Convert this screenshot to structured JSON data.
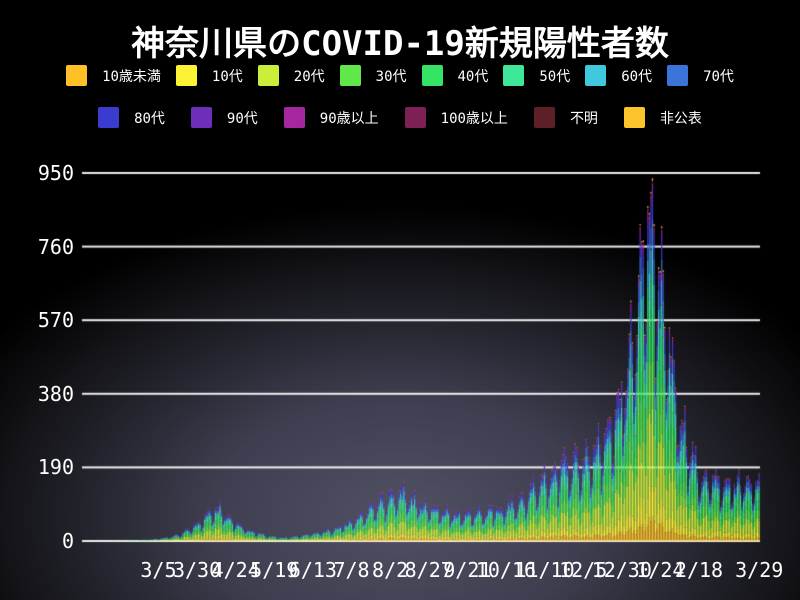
{
  "title": "神奈川県のCOVID-19新規陽性者数",
  "colors": {
    "background_glow": "#515164",
    "background_edge": "#000000",
    "grid": "#ffffff",
    "text": "#ffffff"
  },
  "chart_data": {
    "type": "bar",
    "stacked": true,
    "title": "神奈川県のCOVID-19新規陽性者数",
    "xlabel": "",
    "ylabel": "",
    "grid": true,
    "legend_position": "top",
    "y_ticks": [
      0,
      190,
      380,
      570,
      760,
      950
    ],
    "ylim": [
      0,
      1020
    ],
    "n_days": 439,
    "x_ticks": [
      {
        "label": "3/5",
        "day": 49
      },
      {
        "label": "3/30",
        "day": 74
      },
      {
        "label": "4/24",
        "day": 99
      },
      {
        "label": "5/19",
        "day": 124
      },
      {
        "label": "6/13",
        "day": 149
      },
      {
        "label": "7/8",
        "day": 174
      },
      {
        "label": "8/2",
        "day": 199
      },
      {
        "label": "8/27",
        "day": 224
      },
      {
        "label": "9/21",
        "day": 249
      },
      {
        "label": "10/16",
        "day": 274
      },
      {
        "label": "11/10",
        "day": 299
      },
      {
        "label": "12/5",
        "day": 324
      },
      {
        "label": "12/30",
        "day": 349
      },
      {
        "label": "1/24",
        "day": 374
      },
      {
        "label": "2/18",
        "day": 399
      },
      {
        "label": "3/29",
        "day": 438
      }
    ],
    "series": [
      {
        "label": "10歳未満",
        "color": "#ffc127",
        "share": 0.055
      },
      {
        "label": "10代",
        "color": "#fdf335",
        "share": 0.08
      },
      {
        "label": "20代",
        "color": "#c9ef3a",
        "share": 0.2
      },
      {
        "label": "30代",
        "color": "#60e84a",
        "share": 0.15
      },
      {
        "label": "40代",
        "color": "#34e363",
        "share": 0.14
      },
      {
        "label": "50代",
        "color": "#3de898",
        "share": 0.12
      },
      {
        "label": "60代",
        "color": "#3fc8de",
        "share": 0.08
      },
      {
        "label": "70代",
        "color": "#3b74d8",
        "share": 0.07
      },
      {
        "label": "80代",
        "color": "#3b3bd0",
        "share": 0.055
      },
      {
        "label": "90代",
        "color": "#6d2fba",
        "share": 0.028
      },
      {
        "label": "90歳以上",
        "color": "#a527a0",
        "share": 0.01
      },
      {
        "label": "100歳以上",
        "color": "#7c2055",
        "share": 0.003
      },
      {
        "label": "不明",
        "color": "#5c2026",
        "share": 0.004
      },
      {
        "label": "非公表",
        "color": "#fcc32b",
        "share": 0.005
      }
    ],
    "envelope_anchors": [
      [
        0,
        1
      ],
      [
        2,
        0
      ],
      [
        15,
        0
      ],
      [
        25,
        1
      ],
      [
        35,
        2
      ],
      [
        45,
        4
      ],
      [
        52,
        8
      ],
      [
        58,
        12
      ],
      [
        64,
        20
      ],
      [
        70,
        32
      ],
      [
        76,
        50
      ],
      [
        82,
        70
      ],
      [
        86,
        88
      ],
      [
        90,
        80
      ],
      [
        95,
        62
      ],
      [
        100,
        45
      ],
      [
        106,
        32
      ],
      [
        112,
        24
      ],
      [
        118,
        16
      ],
      [
        124,
        12
      ],
      [
        130,
        9
      ],
      [
        136,
        11
      ],
      [
        142,
        15
      ],
      [
        148,
        19
      ],
      [
        154,
        24
      ],
      [
        160,
        30
      ],
      [
        166,
        38
      ],
      [
        172,
        48
      ],
      [
        178,
        62
      ],
      [
        184,
        80
      ],
      [
        190,
        96
      ],
      [
        196,
        108
      ],
      [
        202,
        118
      ],
      [
        207,
        126
      ],
      [
        212,
        114
      ],
      [
        218,
        100
      ],
      [
        224,
        92
      ],
      [
        230,
        82
      ],
      [
        236,
        76
      ],
      [
        242,
        72
      ],
      [
        248,
        70
      ],
      [
        254,
        73
      ],
      [
        260,
        78
      ],
      [
        266,
        82
      ],
      [
        272,
        88
      ],
      [
        278,
        96
      ],
      [
        284,
        108
      ],
      [
        290,
        126
      ],
      [
        296,
        148
      ],
      [
        302,
        170
      ],
      [
        308,
        192
      ],
      [
        314,
        208
      ],
      [
        320,
        218
      ],
      [
        326,
        228
      ],
      [
        332,
        242
      ],
      [
        338,
        262
      ],
      [
        343,
        300
      ],
      [
        347,
        350
      ],
      [
        351,
        420
      ],
      [
        355,
        500
      ],
      [
        359,
        610
      ],
      [
        362,
        700
      ],
      [
        364,
        780
      ],
      [
        366,
        880
      ],
      [
        368,
        840
      ],
      [
        370,
        780
      ],
      [
        373,
        720
      ],
      [
        376,
        640
      ],
      [
        379,
        540
      ],
      [
        382,
        450
      ],
      [
        385,
        380
      ],
      [
        388,
        320
      ],
      [
        391,
        270
      ],
      [
        394,
        232
      ],
      [
        397,
        202
      ],
      [
        400,
        182
      ],
      [
        404,
        168
      ],
      [
        408,
        158
      ],
      [
        412,
        150
      ],
      [
        416,
        144
      ],
      [
        420,
        142
      ],
      [
        424,
        145
      ],
      [
        428,
        150
      ],
      [
        432,
        156
      ],
      [
        435,
        160
      ],
      [
        438,
        150
      ]
    ],
    "weekly_pattern": [
      0.62,
      0.74,
      0.97,
      1.05,
      1.1,
      1.13,
      1.01
    ],
    "noise_amplitude": 0.12,
    "soft_knee": 850,
    "soft_knee_slope": 0.55,
    "peak_cap": 993
  }
}
